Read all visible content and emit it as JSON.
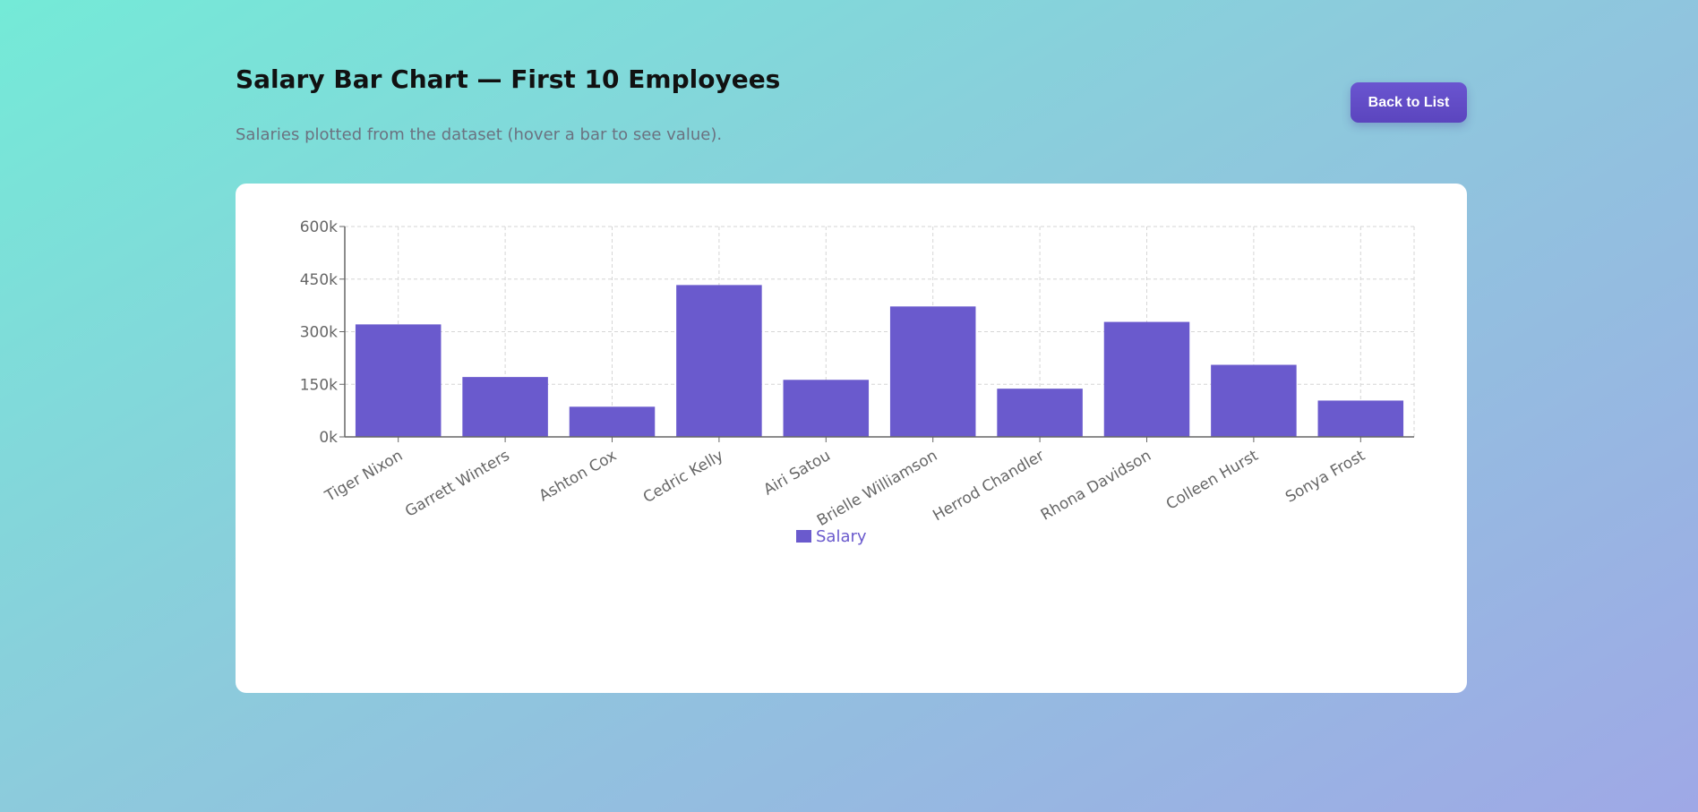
{
  "header": {
    "title": "Salary Bar Chart — First 10 Employees",
    "subtitle": "Salaries plotted from the dataset (hover a bar to see value).",
    "back_label": "Back to List"
  },
  "colors": {
    "bar": "#6a5acd",
    "grid": "#d6d6d6",
    "axis": "#666666",
    "button": "#5b45be"
  },
  "chart_data": {
    "type": "bar",
    "categories": [
      "Tiger Nixon",
      "Garrett Winters",
      "Ashton Cox",
      "Cedric Kelly",
      "Airi Satou",
      "Brielle Williamson",
      "Herrod Chandler",
      "Rhona Davidson",
      "Colleen Hurst",
      "Sonya Frost"
    ],
    "series": [
      {
        "name": "Salary",
        "values": [
          320800,
          170750,
          86000,
          433060,
          162700,
          372000,
          137500,
          327900,
          205500,
          103600
        ]
      }
    ],
    "ylim": [
      0,
      600000
    ],
    "yticks": [
      0,
      150000,
      300000,
      450000,
      600000
    ],
    "ytick_labels": [
      "0k",
      "150k",
      "300k",
      "450k",
      "600k"
    ],
    "grid": true,
    "legend": "bottom-center"
  }
}
